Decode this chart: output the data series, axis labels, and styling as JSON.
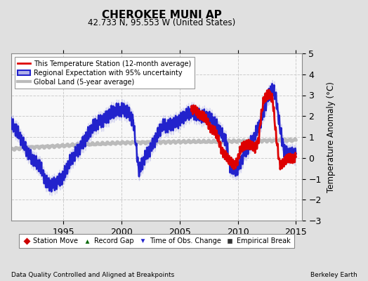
{
  "title": "CHEROKEE MUNI AP",
  "subtitle": "42.733 N, 95.553 W (United States)",
  "ylabel": "Temperature Anomaly (°C)",
  "ylim": [
    -3,
    5
  ],
  "xlim": [
    1990.5,
    2015.5
  ],
  "yticks": [
    -3,
    -2,
    -1,
    0,
    1,
    2,
    3,
    4,
    5
  ],
  "xticks": [
    1995,
    2000,
    2005,
    2010,
    2015
  ],
  "footer_left": "Data Quality Controlled and Aligned at Breakpoints",
  "footer_right": "Berkeley Earth",
  "legend1_entries": [
    {
      "label": "This Temperature Station (12-month average)",
      "color": "#cc0000",
      "lw": 2
    },
    {
      "label": "Regional Expectation with 95% uncertainty",
      "color": "#3333cc",
      "lw": 2,
      "fill_color": "#aaaaee"
    },
    {
      "label": "Global Land (5-year average)",
      "color": "#bbbbbb",
      "lw": 3
    }
  ],
  "legend2_entries": [
    {
      "label": "Station Move",
      "marker": "D",
      "color": "#cc0000"
    },
    {
      "label": "Record Gap",
      "marker": "^",
      "color": "#006600"
    },
    {
      "label": "Time of Obs. Change",
      "marker": "v",
      "color": "#3333cc"
    },
    {
      "label": "Empirical Break",
      "marker": "s",
      "color": "#333333"
    }
  ],
  "bg_color": "#e0e0e0",
  "plot_bg_color": "#f8f8f8",
  "grid_color": "#dddddd",
  "regional_fill_alpha": 0.4,
  "regional_fill_color": "#b0b0e8",
  "regional_line_color": "#2222cc",
  "station_line_color": "#dd0000",
  "global_line_color": "#bbbbbb",
  "regional_lw": 1.8,
  "station_lw": 2.0,
  "global_lw": 3.5
}
